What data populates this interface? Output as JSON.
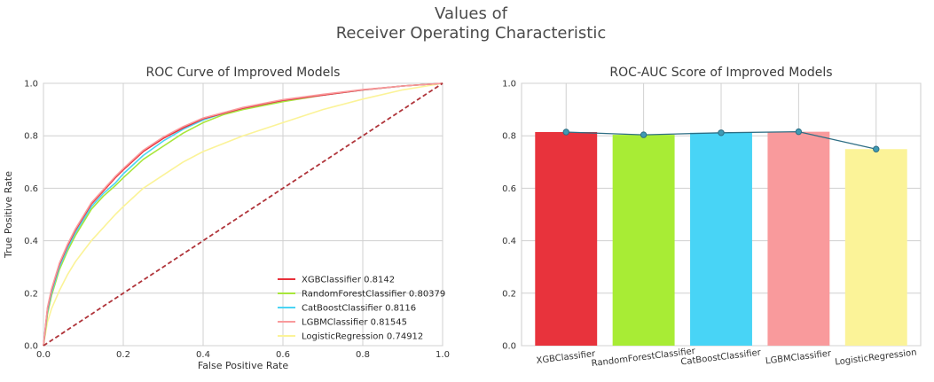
{
  "figure": {
    "title_line1": "Values of",
    "title_line2": "Receiver Operating Characteristic"
  },
  "chart_data": [
    {
      "type": "line",
      "title": "ROC Curve of Improved Models",
      "xlabel": "False Positive Rate",
      "ylabel": "True Positive Rate",
      "xlim": [
        0,
        1
      ],
      "ylim": [
        0,
        1
      ],
      "xticks": [
        "0.0",
        "0.2",
        "0.4",
        "0.6",
        "0.8",
        "1.0"
      ],
      "yticks": [
        "0.0",
        "0.2",
        "0.4",
        "0.6",
        "0.8",
        "1.0"
      ],
      "grid": true,
      "legend_position": "lower-right",
      "series": [
        {
          "name": "XGBClassifier",
          "auc": "0.8142",
          "color": "#e8303a",
          "x": [
            0,
            0.01,
            0.02,
            0.04,
            0.06,
            0.08,
            0.1,
            0.12,
            0.15,
            0.18,
            0.2,
            0.25,
            0.3,
            0.35,
            0.4,
            0.45,
            0.5,
            0.6,
            0.7,
            0.8,
            0.9,
            1.0
          ],
          "y": [
            0,
            0.14,
            0.21,
            0.31,
            0.38,
            0.44,
            0.49,
            0.54,
            0.59,
            0.64,
            0.67,
            0.74,
            0.79,
            0.83,
            0.865,
            0.885,
            0.905,
            0.935,
            0.955,
            0.975,
            0.99,
            1.0
          ]
        },
        {
          "name": "RandomForestClassifier",
          "auc": "0.80379",
          "color": "#a8e63a",
          "x": [
            0,
            0.01,
            0.02,
            0.04,
            0.06,
            0.08,
            0.1,
            0.12,
            0.15,
            0.18,
            0.2,
            0.25,
            0.3,
            0.35,
            0.4,
            0.45,
            0.5,
            0.6,
            0.7,
            0.8,
            0.9,
            1.0
          ],
          "y": [
            0,
            0.12,
            0.19,
            0.29,
            0.36,
            0.42,
            0.47,
            0.52,
            0.57,
            0.61,
            0.64,
            0.71,
            0.76,
            0.81,
            0.85,
            0.88,
            0.9,
            0.93,
            0.955,
            0.975,
            0.99,
            1.0
          ]
        },
        {
          "name": "CatBoostClassifier",
          "auc": "0.8116",
          "color": "#4ad4f4",
          "x": [
            0,
            0.01,
            0.02,
            0.04,
            0.06,
            0.08,
            0.1,
            0.12,
            0.15,
            0.18,
            0.2,
            0.25,
            0.3,
            0.35,
            0.4,
            0.45,
            0.5,
            0.6,
            0.7,
            0.8,
            0.9,
            1.0
          ],
          "y": [
            0,
            0.13,
            0.2,
            0.3,
            0.37,
            0.43,
            0.48,
            0.53,
            0.58,
            0.62,
            0.655,
            0.725,
            0.78,
            0.825,
            0.86,
            0.885,
            0.905,
            0.935,
            0.955,
            0.975,
            0.99,
            1.0
          ]
        },
        {
          "name": "LGBMClassifier",
          "auc": "0.81545",
          "color": "#f99a9c",
          "x": [
            0,
            0.01,
            0.02,
            0.04,
            0.06,
            0.08,
            0.1,
            0.12,
            0.15,
            0.18,
            0.2,
            0.25,
            0.3,
            0.35,
            0.4,
            0.45,
            0.5,
            0.6,
            0.7,
            0.8,
            0.9,
            1.0
          ],
          "y": [
            0,
            0.145,
            0.215,
            0.315,
            0.385,
            0.445,
            0.495,
            0.545,
            0.595,
            0.645,
            0.675,
            0.745,
            0.795,
            0.835,
            0.868,
            0.888,
            0.908,
            0.938,
            0.958,
            0.976,
            0.99,
            1.0
          ]
        },
        {
          "name": "LogisticRegression",
          "auc": "0.74912",
          "color": "#fbf398",
          "x": [
            0,
            0.01,
            0.02,
            0.04,
            0.06,
            0.08,
            0.1,
            0.12,
            0.15,
            0.18,
            0.2,
            0.25,
            0.3,
            0.35,
            0.4,
            0.45,
            0.5,
            0.6,
            0.7,
            0.8,
            0.9,
            1.0
          ],
          "y": [
            0,
            0.09,
            0.14,
            0.21,
            0.27,
            0.32,
            0.36,
            0.4,
            0.45,
            0.5,
            0.53,
            0.6,
            0.65,
            0.7,
            0.74,
            0.77,
            0.8,
            0.85,
            0.9,
            0.94,
            0.975,
            1.0
          ]
        }
      ],
      "reference_line": {
        "x": [
          0,
          1
        ],
        "y": [
          0,
          1
        ],
        "color": "#b0343a",
        "style": "dashed"
      }
    },
    {
      "type": "bar",
      "title": "ROC-AUC Score of Improved Models",
      "categories": [
        "XGBClassifier",
        "RandomForestClassifier",
        "CatBoostClassifier",
        "LGBMClassifier",
        "LogisticRegression"
      ],
      "values": [
        0.8142,
        0.80379,
        0.8116,
        0.81545,
        0.74912
      ],
      "colors": [
        "#e8333c",
        "#a8ec35",
        "#48d4f6",
        "#f99a9c",
        "#fbf398"
      ],
      "overlay_line_color": "#2e6e84",
      "ylim": [
        0,
        1
      ],
      "yticks": [
        "0.0",
        "0.2",
        "0.4",
        "0.6",
        "0.8",
        "1.0"
      ],
      "grid": true
    }
  ]
}
